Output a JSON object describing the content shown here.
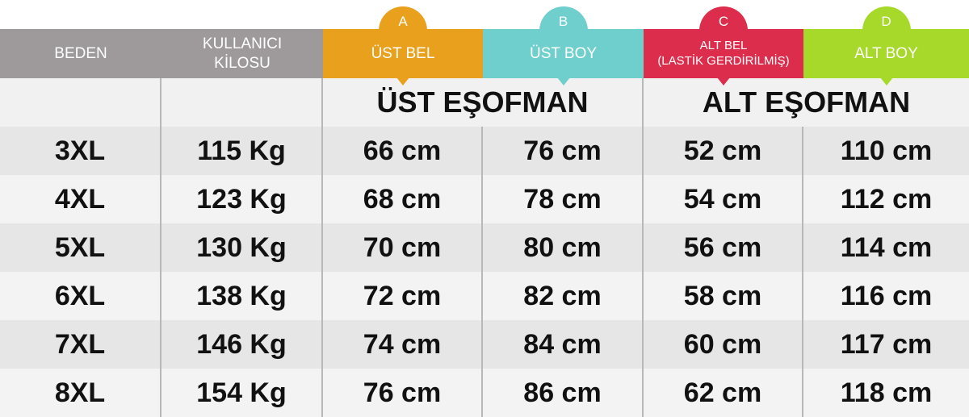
{
  "headers": [
    {
      "label": "BEDEN",
      "color": "#9e9a9b"
    },
    {
      "label": "KULLANICI\nKİLOSU",
      "color": "#9e9a9b"
    },
    {
      "letter": "A",
      "label": "ÜST BEL",
      "color": "#e9a01d"
    },
    {
      "letter": "B",
      "label": "ÜST BOY",
      "color": "#6fcfcd"
    },
    {
      "letter": "C",
      "label": "ALT BEL\n(LASTİK GERDİRİLMİŞ)",
      "color": "#dc2e4c"
    },
    {
      "letter": "D",
      "label": "ALT BOY",
      "color": "#a6d92a"
    }
  ],
  "groups": {
    "upper": "ÜST EŞOFMAN",
    "lower": "ALT EŞOFMAN"
  },
  "rows": [
    [
      "3XL",
      "115 Kg",
      "66 cm",
      "76 cm",
      "52 cm",
      "110 cm"
    ],
    [
      "4XL",
      "123 Kg",
      "68 cm",
      "78 cm",
      "54 cm",
      "112 cm"
    ],
    [
      "5XL",
      "130 Kg",
      "70 cm",
      "80 cm",
      "56 cm",
      "114 cm"
    ],
    [
      "6XL",
      "138 Kg",
      "72 cm",
      "82 cm",
      "58 cm",
      "116 cm"
    ],
    [
      "7XL",
      "146 Kg",
      "74 cm",
      "84 cm",
      "60 cm",
      "117 cm"
    ],
    [
      "8XL",
      "154 Kg",
      "76 cm",
      "86 cm",
      "62 cm",
      "118 cm"
    ]
  ]
}
